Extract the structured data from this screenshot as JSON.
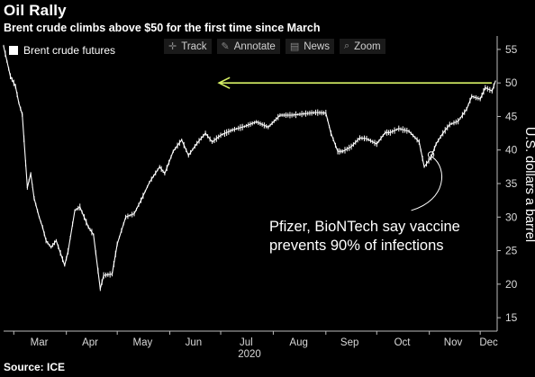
{
  "header": {
    "title": "Oil Rally",
    "subtitle": "Brent crude climbs above $50 for the first time since March"
  },
  "legend": {
    "label": "Brent crude futures"
  },
  "toolbar": {
    "items": [
      {
        "label": "Track",
        "icon": "crosshair-icon",
        "glyph": "✛"
      },
      {
        "label": "Annotate",
        "icon": "pencil-icon",
        "glyph": "✎"
      },
      {
        "label": "News",
        "icon": "news-icon",
        "glyph": "▤"
      },
      {
        "label": "Zoom",
        "icon": "zoom-icon",
        "glyph": "⌕"
      }
    ]
  },
  "footer": {
    "source": "Source: ICE"
  },
  "chart_data": {
    "type": "line",
    "title": "Oil Rally",
    "subtitle": "Brent crude climbs above $50 for the first time since March",
    "ylabel": "U.S. dollars a barrel",
    "xlabel": "2020",
    "x_ticks": [
      "Mar",
      "Apr",
      "May",
      "Jun",
      "Jul",
      "Aug",
      "Sep",
      "Oct",
      "Nov",
      "Dec"
    ],
    "y_ticks": [
      15,
      20,
      25,
      30,
      35,
      40,
      45,
      50,
      55
    ],
    "ylim": [
      13,
      57
    ],
    "axis_position": "right",
    "grid": false,
    "legend_position": "top-left",
    "colors": {
      "background": "#000000",
      "series": "#ffffff",
      "arrow": "#d8f266",
      "axis": "#bbbbbb",
      "annotation_line": "#ffffff"
    },
    "series": [
      {
        "name": "Brent crude futures",
        "x": [
          "2020-02-24",
          "2020-02-26",
          "2020-02-28",
          "2020-03-02",
          "2020-03-04",
          "2020-03-06",
          "2020-03-09",
          "2020-03-11",
          "2020-03-13",
          "2020-03-16",
          "2020-03-18",
          "2020-03-20",
          "2020-03-23",
          "2020-03-26",
          "2020-03-31",
          "2020-04-02",
          "2020-04-06",
          "2020-04-09",
          "2020-04-14",
          "2020-04-17",
          "2020-04-21",
          "2020-04-23",
          "2020-04-28",
          "2020-05-01",
          "2020-05-06",
          "2020-05-11",
          "2020-05-15",
          "2020-05-20",
          "2020-05-26",
          "2020-05-29",
          "2020-06-03",
          "2020-06-08",
          "2020-06-12",
          "2020-06-17",
          "2020-06-22",
          "2020-06-26",
          "2020-07-01",
          "2020-07-08",
          "2020-07-15",
          "2020-07-22",
          "2020-07-29",
          "2020-08-05",
          "2020-08-12",
          "2020-08-19",
          "2020-08-26",
          "2020-09-01",
          "2020-09-04",
          "2020-09-08",
          "2020-09-11",
          "2020-09-16",
          "2020-09-21",
          "2020-09-25",
          "2020-10-01",
          "2020-10-06",
          "2020-10-09",
          "2020-10-14",
          "2020-10-20",
          "2020-10-26",
          "2020-10-29",
          "2020-11-02",
          "2020-11-05",
          "2020-11-09",
          "2020-11-13",
          "2020-11-18",
          "2020-11-23",
          "2020-11-26",
          "2020-12-01",
          "2020-12-04",
          "2020-12-08",
          "2020-12-10"
        ],
        "values": [
          55.5,
          53.2,
          51.0,
          49.5,
          47.0,
          45.3,
          34.4,
          36.5,
          32.8,
          30.0,
          28.5,
          26.5,
          25.5,
          26.5,
          22.8,
          24.9,
          31.0,
          31.5,
          28.5,
          27.4,
          19.3,
          21.3,
          21.5,
          26.0,
          30.0,
          30.5,
          32.5,
          35.2,
          37.5,
          36.5,
          39.8,
          41.5,
          39.2,
          41.0,
          42.5,
          41.2,
          42.2,
          43.0,
          43.5,
          44.2,
          43.4,
          45.2,
          45.2,
          45.4,
          45.6,
          45.5,
          42.5,
          39.8,
          39.8,
          40.5,
          41.8,
          41.7,
          40.9,
          42.6,
          42.6,
          43.2,
          42.8,
          41.2,
          37.5,
          38.9,
          40.9,
          42.5,
          43.8,
          44.3,
          46.1,
          48.0,
          47.6,
          49.3,
          48.8,
          50.3
        ]
      }
    ],
    "annotations": [
      {
        "text_lines": [
          "Pfizer, BioNTech say vaccine",
          "prevents 90% of infections"
        ],
        "date": "2020-11-02",
        "value": 39.3
      },
      {
        "type": "arrow",
        "from_date": "2020-12-10",
        "to_date": "2020-06-30",
        "value": 50
      }
    ]
  }
}
